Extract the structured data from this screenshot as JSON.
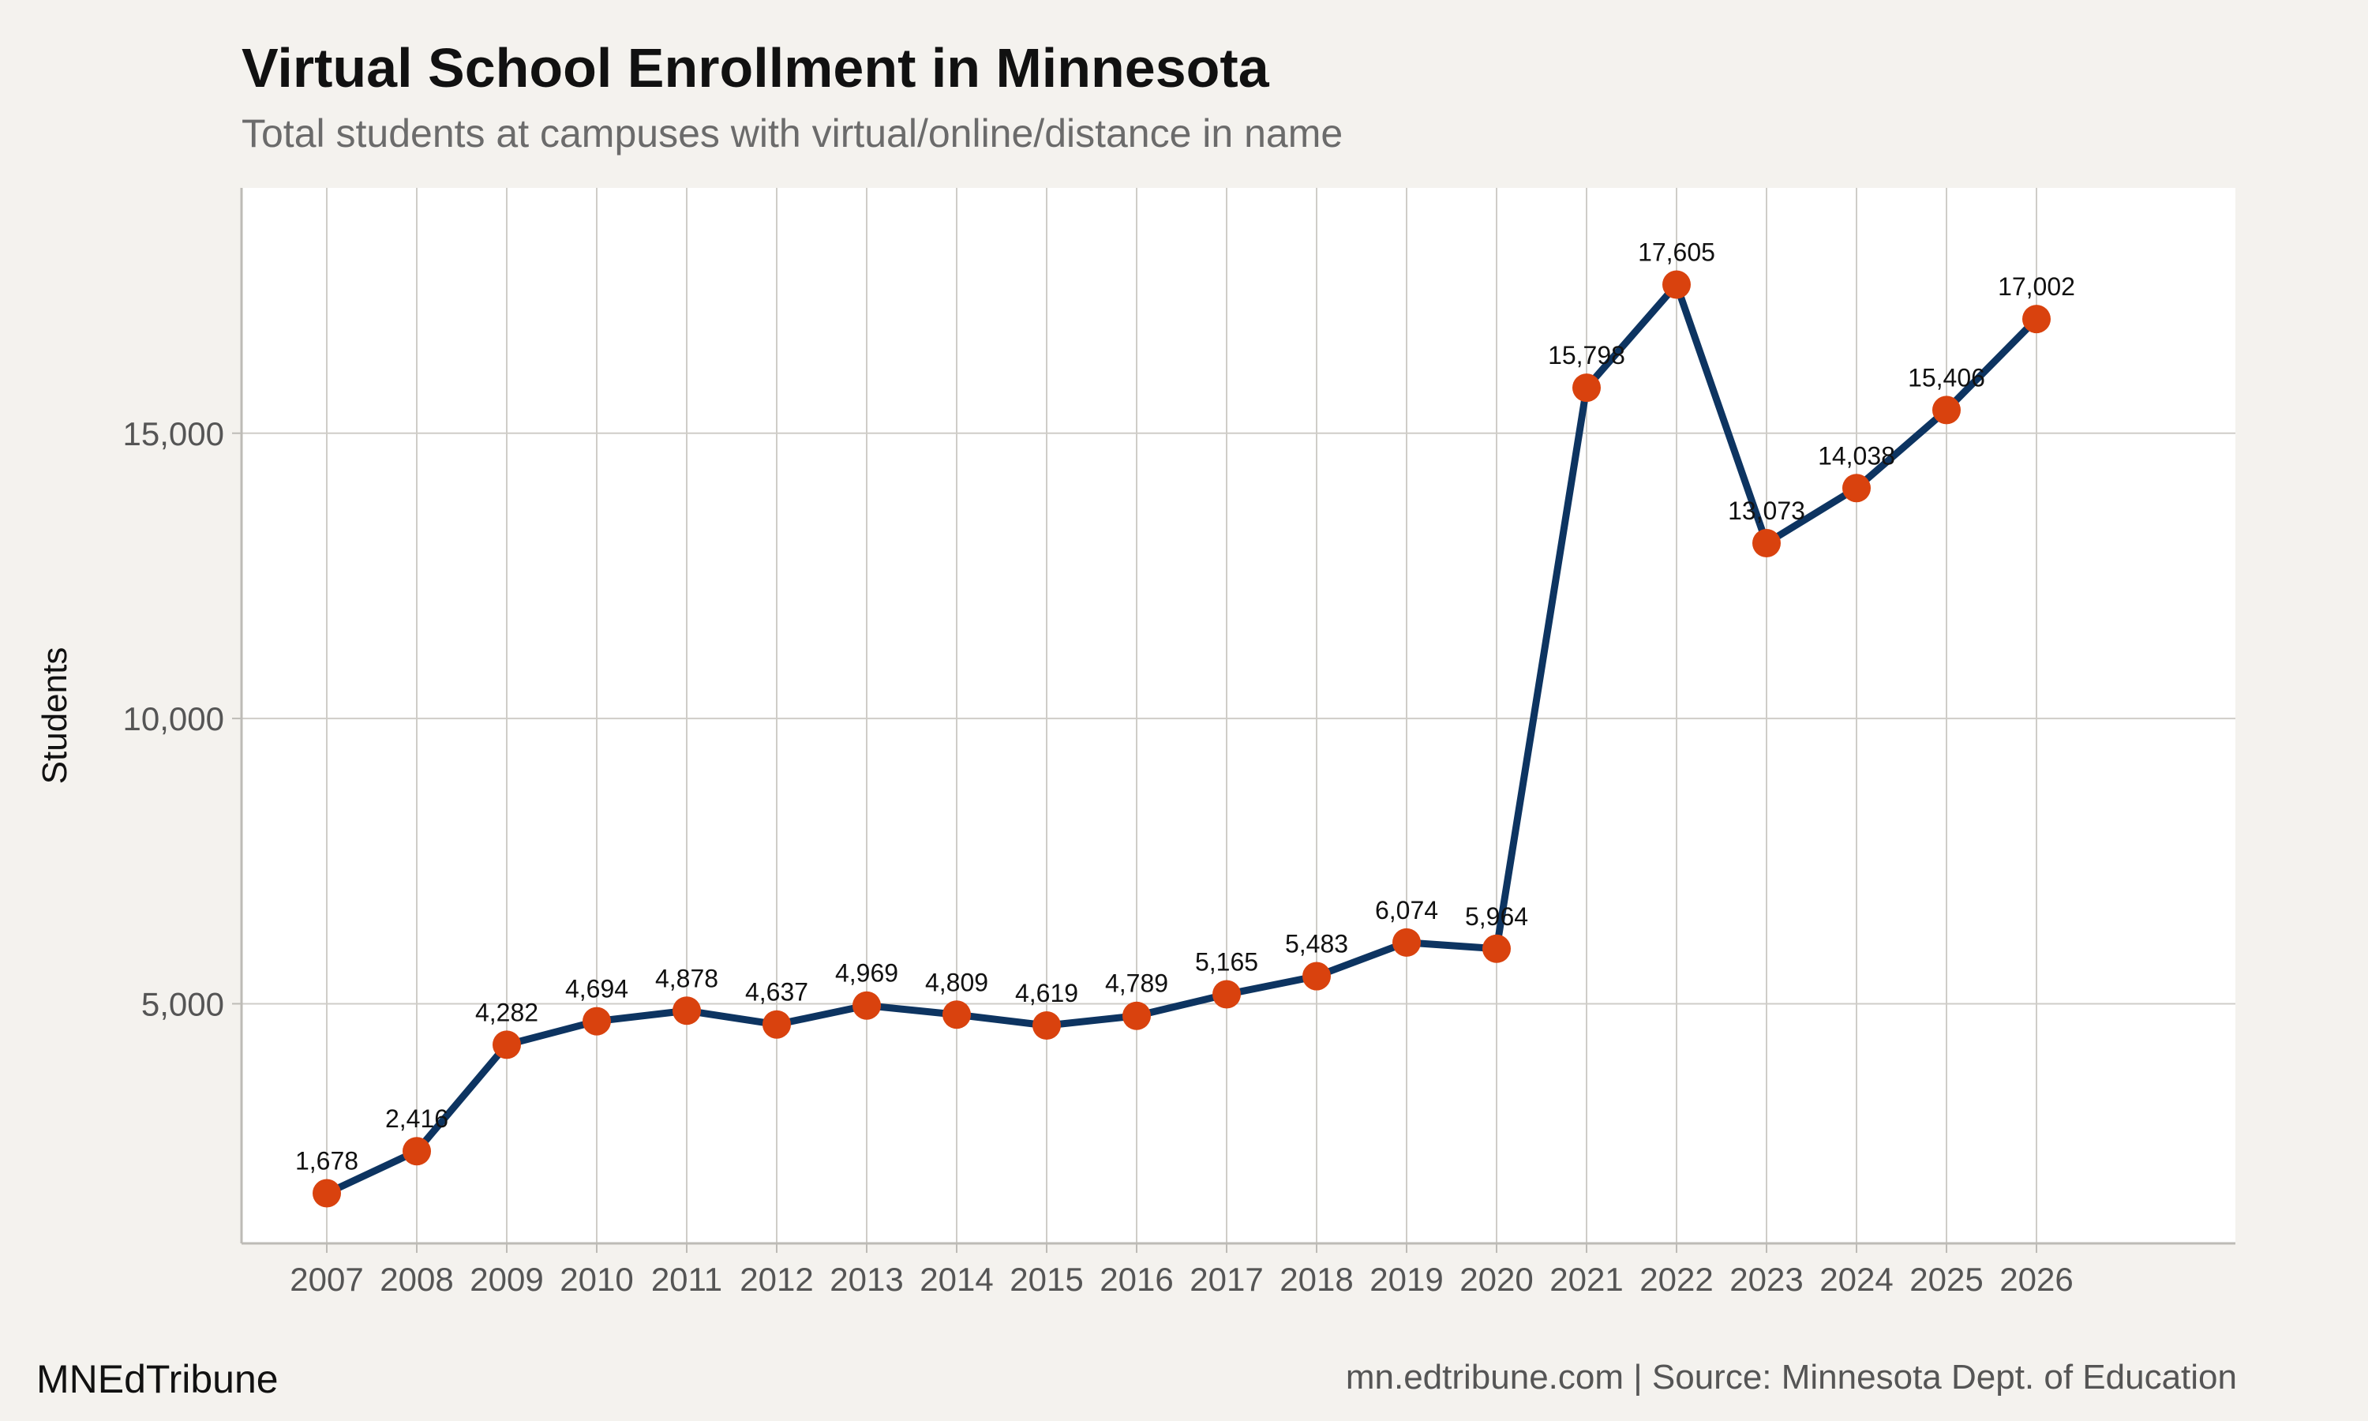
{
  "header": {
    "title": "Virtual School Enrollment in Minnesota",
    "subtitle": "Total students at campuses with virtual/online/distance in name"
  },
  "footer": {
    "brand": "MNEdTribune",
    "source": "mn.edtribune.com | Source: Minnesota Dept. of Education"
  },
  "colors": {
    "background": "#f4f2ee",
    "plot_background": "#ffffff",
    "grid": "#cfcdc8",
    "line": "#0d3461",
    "marker": "#d9420e"
  },
  "chart_data": {
    "type": "line",
    "title": "Virtual School Enrollment in Minnesota",
    "subtitle": "Total students at campuses with virtual/online/distance in name",
    "xlabel": "",
    "ylabel": "Students",
    "x": [
      "2007",
      "2008",
      "2009",
      "2010",
      "2011",
      "2012",
      "2013",
      "2014",
      "2015",
      "2016",
      "2017",
      "2018",
      "2019",
      "2020",
      "2021",
      "2022",
      "2023",
      "2024",
      "2025",
      "2026"
    ],
    "values": [
      1678,
      2416,
      4282,
      4694,
      4878,
      4637,
      4969,
      4809,
      4619,
      4789,
      5165,
      5483,
      6074,
      5964,
      15798,
      17605,
      13073,
      14038,
      15406,
      17002
    ],
    "data_labels": [
      "1,678",
      "2,416",
      "4,282",
      "4,694",
      "4,878",
      "4,637",
      "4,969",
      "4,809",
      "4,619",
      "4,789",
      "5,165",
      "5,483",
      "6,074",
      "5,964",
      "15,798",
      "17,605",
      "13,073",
      "14,038",
      "15,406",
      "17,002"
    ],
    "yticks": [
      5000,
      10000,
      15000
    ],
    "ytick_labels": [
      "5,000",
      "10,000",
      "15,000"
    ],
    "ylim": [
      800,
      19300
    ],
    "grid": true,
    "legend": "none"
  }
}
